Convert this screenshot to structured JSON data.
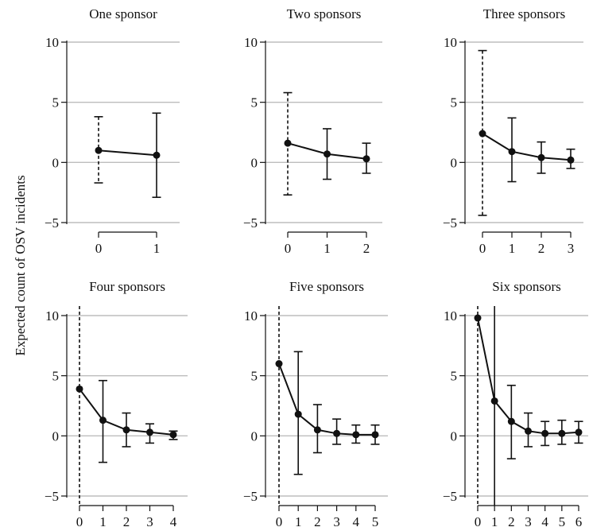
{
  "figure": {
    "ylabel": "Expected count of OSV incidents"
  },
  "chart_data": [
    {
      "type": "line",
      "title": "One sponsor",
      "ylim": [
        -5,
        10
      ],
      "yticks": [
        -5,
        0,
        5,
        10
      ],
      "x": [
        0,
        1
      ],
      "series": [
        {
          "values": [
            1.0,
            0.6
          ],
          "lower": [
            -1.7,
            -2.9
          ],
          "upper": [
            3.8,
            4.1
          ],
          "dashed": [
            true,
            false
          ]
        }
      ],
      "grid": "horizontal"
    },
    {
      "type": "line",
      "title": "Two sponsors",
      "ylim": [
        -5,
        10
      ],
      "yticks": [
        -5,
        0,
        5,
        10
      ],
      "x": [
        0,
        1,
        2
      ],
      "series": [
        {
          "values": [
            1.6,
            0.7,
            0.3
          ],
          "lower": [
            -2.7,
            -1.4,
            -0.9
          ],
          "upper": [
            5.8,
            2.8,
            1.6
          ],
          "dashed": [
            true,
            false,
            false
          ]
        }
      ],
      "grid": "horizontal"
    },
    {
      "type": "line",
      "title": "Three sponsors",
      "ylim": [
        -5,
        10
      ],
      "yticks": [
        -5,
        0,
        5,
        10
      ],
      "x": [
        0,
        1,
        2,
        3
      ],
      "series": [
        {
          "values": [
            2.4,
            0.9,
            0.4,
            0.2
          ],
          "lower": [
            -4.4,
            -1.6,
            -0.9,
            -0.5
          ],
          "upper": [
            9.3,
            3.7,
            1.7,
            1.1
          ],
          "dashed": [
            true,
            false,
            false,
            false
          ]
        }
      ],
      "grid": "horizontal"
    },
    {
      "type": "line",
      "title": "Four sponsors",
      "ylim": [
        -5,
        10
      ],
      "yticks": [
        -5,
        0,
        5,
        10
      ],
      "x": [
        0,
        1,
        2,
        3,
        4
      ],
      "series": [
        {
          "values": [
            3.9,
            1.3,
            0.5,
            0.3,
            0.1
          ],
          "lower": [
            -6.0,
            -2.2,
            -0.9,
            -0.6,
            -0.3
          ],
          "upper": [
            14.0,
            4.6,
            1.9,
            1.0,
            0.4
          ],
          "dashed": [
            true,
            false,
            false,
            false,
            false
          ]
        }
      ],
      "grid": "horizontal"
    },
    {
      "type": "line",
      "title": "Five sponsors",
      "ylim": [
        -5,
        10
      ],
      "yticks": [
        -5,
        0,
        5,
        10
      ],
      "x": [
        0,
        1,
        2,
        3,
        4,
        5
      ],
      "series": [
        {
          "values": [
            6.0,
            1.8,
            0.5,
            0.2,
            0.1,
            0.1
          ],
          "lower": [
            -6.0,
            -3.2,
            -1.4,
            -0.7,
            -0.6,
            -0.7
          ],
          "upper": [
            14.0,
            7.0,
            2.6,
            1.4,
            0.9,
            0.9
          ],
          "dashed": [
            true,
            false,
            false,
            false,
            false,
            false
          ]
        }
      ],
      "grid": "horizontal"
    },
    {
      "type": "line",
      "title": "Six sponsors",
      "ylim": [
        -5,
        10
      ],
      "yticks": [
        -5,
        0,
        5,
        10
      ],
      "x": [
        0,
        1,
        2,
        3,
        4,
        5,
        6
      ],
      "series": [
        {
          "values": [
            9.8,
            2.9,
            1.2,
            0.4,
            0.2,
            0.2,
            0.3
          ],
          "lower": [
            -6.0,
            -6.0,
            -1.9,
            -0.9,
            -0.8,
            -0.7,
            -0.6
          ],
          "upper": [
            14.0,
            14.0,
            4.2,
            1.9,
            1.2,
            1.3,
            1.2
          ],
          "dashed": [
            true,
            false,
            false,
            false,
            false,
            false,
            false
          ]
        }
      ],
      "grid": "horizontal"
    }
  ]
}
